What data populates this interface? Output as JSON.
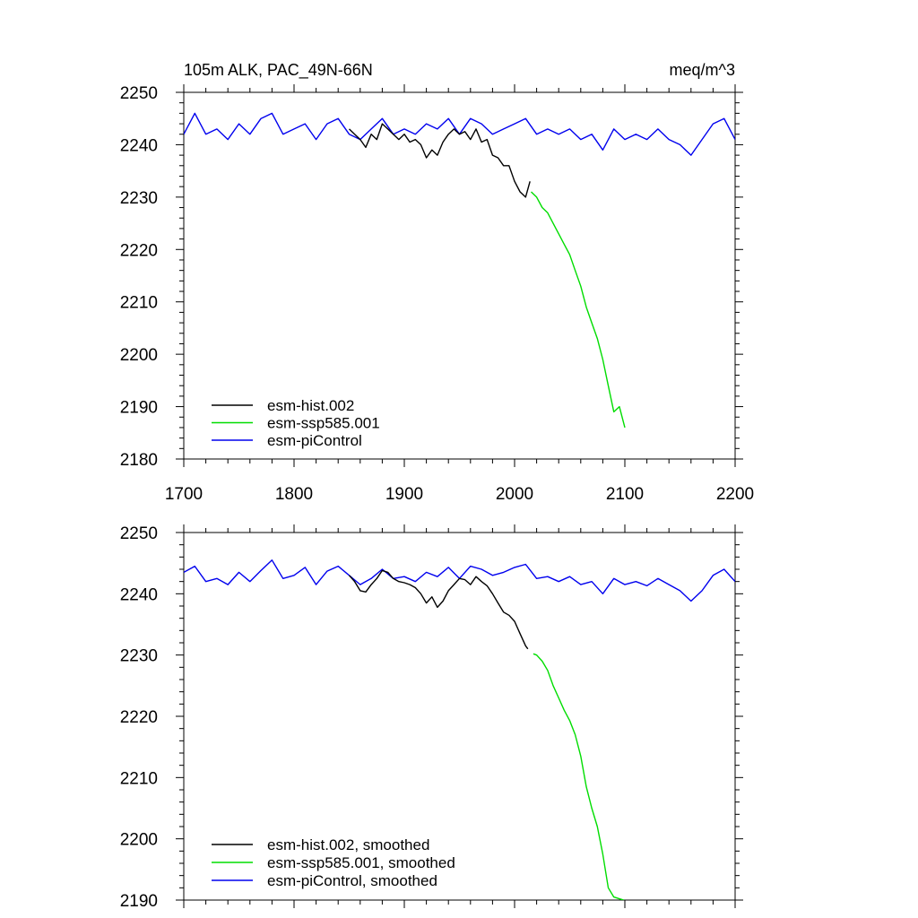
{
  "chart_data": [
    {
      "type": "line",
      "title_left": "105m ALK, PAC_49N-66N",
      "title_right": "meq/m^3",
      "xlim": [
        1700,
        2200
      ],
      "ylim": [
        2180,
        2250
      ],
      "x_ticks": [
        1700,
        1800,
        1900,
        2000,
        2100,
        2200
      ],
      "y_ticks": [
        2180,
        2190,
        2200,
        2210,
        2220,
        2230,
        2240,
        2250
      ],
      "legend_position": "bottom-left",
      "series": [
        {
          "name": "esm-hist.002",
          "color": "#000000",
          "x": [
            1850,
            1855,
            1860,
            1865,
            1870,
            1875,
            1880,
            1885,
            1890,
            1895,
            1900,
            1905,
            1910,
            1915,
            1920,
            1925,
            1930,
            1935,
            1940,
            1945,
            1950,
            1955,
            1960,
            1965,
            1970,
            1975,
            1980,
            1985,
            1990,
            1995,
            2000,
            2005,
            2010,
            2014
          ],
          "y": [
            2243,
            2242,
            2241,
            2239.5,
            2242,
            2241,
            2244,
            2243,
            2242,
            2241,
            2242,
            2240.5,
            2241,
            2240,
            2237.5,
            2239,
            2238,
            2240.5,
            2242,
            2243,
            2242,
            2242.5,
            2241,
            2243,
            2240.5,
            2241,
            2238,
            2237.5,
            2236,
            2236,
            2233,
            2231,
            2230,
            2233
          ]
        },
        {
          "name": "esm-ssp585.001",
          "color": "#00dd00",
          "x": [
            2015,
            2020,
            2025,
            2030,
            2035,
            2040,
            2045,
            2050,
            2055,
            2060,
            2065,
            2070,
            2075,
            2080,
            2085,
            2090,
            2095,
            2100
          ],
          "y": [
            2231,
            2230,
            2228,
            2227,
            2225,
            2223,
            2221,
            2219,
            2216,
            2213,
            2209,
            2206,
            2203,
            2199,
            2194,
            2189,
            2190,
            2186
          ]
        },
        {
          "name": "esm-piControl",
          "color": "#0000ee",
          "x": [
            1700,
            1710,
            1720,
            1730,
            1740,
            1750,
            1760,
            1770,
            1780,
            1790,
            1800,
            1810,
            1820,
            1830,
            1840,
            1850,
            1860,
            1870,
            1880,
            1890,
            1900,
            1910,
            1920,
            1930,
            1940,
            1950,
            1960,
            1970,
            1980,
            1990,
            2000,
            2010,
            2020,
            2030,
            2040,
            2050,
            2060,
            2070,
            2080,
            2090,
            2100,
            2110,
            2120,
            2130,
            2140,
            2150,
            2160,
            2170,
            2180,
            2190,
            2200
          ],
          "y": [
            2242,
            2246,
            2242,
            2243,
            2241,
            2244,
            2242,
            2245,
            2246,
            2242,
            2243,
            2244,
            2241,
            2244,
            2245,
            2242,
            2241,
            2243,
            2245,
            2242,
            2243,
            2242,
            2244,
            2243,
            2245,
            2242,
            2245,
            2244,
            2242,
            2243,
            2244,
            2245,
            2242,
            2243,
            2242,
            2243,
            2241,
            2242,
            2239,
            2243,
            2241,
            2242,
            2241,
            2243,
            2241,
            2240,
            2238,
            2241,
            2244,
            2245,
            2241
          ]
        }
      ]
    },
    {
      "type": "line",
      "xlim": [
        1700,
        2200
      ],
      "ylim": [
        2190,
        2250
      ],
      "x_ticks": [
        1700,
        1800,
        1900,
        2000,
        2100,
        2200
      ],
      "y_ticks": [
        2190,
        2200,
        2210,
        2220,
        2230,
        2240,
        2250
      ],
      "legend_position": "bottom-left",
      "series": [
        {
          "name": "esm-hist.002, smoothed",
          "color": "#000000",
          "x": [
            1850,
            1855,
            1860,
            1865,
            1870,
            1875,
            1880,
            1885,
            1890,
            1895,
            1900,
            1905,
            1910,
            1915,
            1920,
            1925,
            1930,
            1935,
            1940,
            1945,
            1950,
            1955,
            1960,
            1965,
            1970,
            1975,
            1980,
            1985,
            1990,
            1995,
            2000,
            2005,
            2010,
            2012
          ],
          "y": [
            2243,
            2242,
            2240.5,
            2240.3,
            2241.5,
            2242.5,
            2243.8,
            2243.5,
            2242.5,
            2242,
            2241.8,
            2241.5,
            2241,
            2240,
            2238.5,
            2239.5,
            2237.8,
            2238.8,
            2240.5,
            2241.5,
            2242.5,
            2242.3,
            2241.5,
            2242.8,
            2242,
            2241.3,
            2240,
            2238.5,
            2237,
            2236.5,
            2235.5,
            2233.5,
            2231.5,
            2231
          ]
        },
        {
          "name": "esm-ssp585.001, smoothed",
          "color": "#00dd00",
          "x": [
            2017,
            2020,
            2025,
            2030,
            2035,
            2040,
            2045,
            2050,
            2055,
            2060,
            2065,
            2070,
            2075,
            2080,
            2085,
            2090,
            2095,
            2099
          ],
          "y": [
            2230.2,
            2230,
            2229,
            2227.5,
            2225,
            2223,
            2221,
            2219.3,
            2217,
            2213.5,
            2208.5,
            2205,
            2202,
            2197.5,
            2192,
            2190.5,
            2190.2,
            2190
          ]
        },
        {
          "name": "esm-piControl, smoothed",
          "color": "#0000ee",
          "x": [
            1700,
            1710,
            1720,
            1730,
            1740,
            1750,
            1760,
            1770,
            1780,
            1790,
            1800,
            1810,
            1820,
            1830,
            1840,
            1850,
            1860,
            1870,
            1880,
            1890,
            1900,
            1910,
            1920,
            1930,
            1940,
            1950,
            1960,
            1970,
            1980,
            1990,
            2000,
            2010,
            2020,
            2030,
            2040,
            2050,
            2060,
            2070,
            2080,
            2090,
            2100,
            2110,
            2120,
            2130,
            2140,
            2150,
            2160,
            2170,
            2180,
            2190,
            2200
          ],
          "y": [
            2243.5,
            2244.5,
            2242,
            2242.5,
            2241.5,
            2243.5,
            2242,
            2243.8,
            2245.5,
            2242.5,
            2243,
            2244.3,
            2241.5,
            2243.7,
            2244.5,
            2243,
            2241.5,
            2242.5,
            2244,
            2242.5,
            2242.8,
            2242,
            2243.5,
            2242.8,
            2244.3,
            2242.5,
            2244.5,
            2244,
            2243,
            2243.5,
            2244.3,
            2244.8,
            2242.5,
            2242.8,
            2242,
            2242.8,
            2241.5,
            2242,
            2240,
            2242.5,
            2241.5,
            2242,
            2241.3,
            2242.5,
            2241.5,
            2240.5,
            2238.8,
            2240.5,
            2243,
            2244,
            2242
          ]
        }
      ]
    }
  ]
}
